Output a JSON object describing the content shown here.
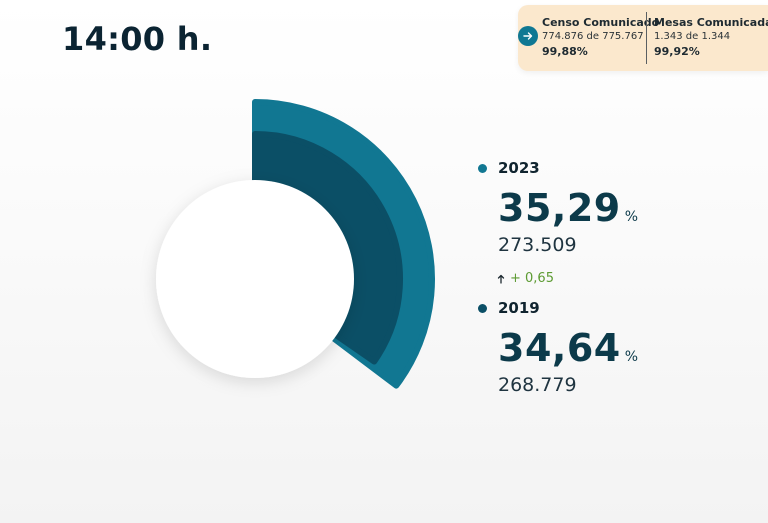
{
  "header": {
    "time_title": "14:00 h."
  },
  "info_card": {
    "censo": {
      "label": "Censo Comunicado",
      "detail": "774.876 de 775.767",
      "percent": "99,88%"
    },
    "mesas": {
      "label": "Mesas Comunicadas",
      "detail": "1.343 de 1.344",
      "percent": "99,92%"
    },
    "arrow_icon": "arrow-right-icon"
  },
  "chart_data": {
    "type": "pie",
    "series": [
      {
        "name": "2023",
        "value": 35.29,
        "color": "#117792"
      },
      {
        "name": "2019",
        "value": 34.64,
        "color": "#0b4f66"
      }
    ]
  },
  "legend": {
    "y2023": {
      "year": "2023",
      "percent": "35,29",
      "unit": "%",
      "count": "273.509",
      "color": "#117792"
    },
    "diff": {
      "text": "+ 0,65",
      "icon": "arrow-up-icon",
      "color": "#5d9b33"
    },
    "y2019": {
      "year": "2019",
      "percent": "34,64",
      "unit": "%",
      "count": "268.779",
      "color": "#0b4f66"
    }
  }
}
